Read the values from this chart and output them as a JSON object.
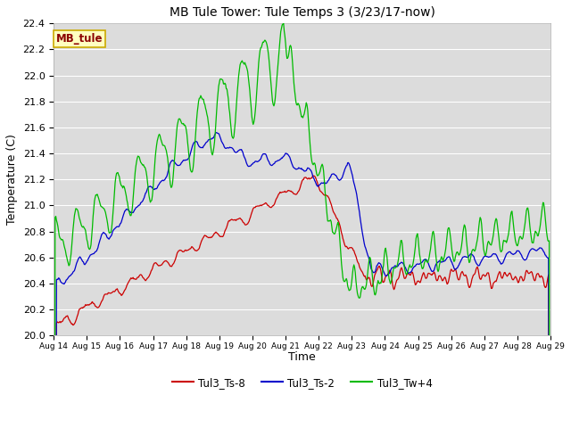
{
  "title": "MB Tule Tower: Tule Temps 3 (3/23/17-now)",
  "xlabel": "Time",
  "ylabel": "Temperature (C)",
  "ylim": [
    20.0,
    22.4
  ],
  "xlim": [
    0,
    360
  ],
  "bg_color": "#dcdcdc",
  "fig_color": "#ffffff",
  "x_tick_labels": [
    "Aug 14",
    "Aug 15",
    "Aug 16",
    "Aug 17",
    "Aug 18",
    "Aug 19",
    "Aug 20",
    "Aug 21",
    "Aug 22",
    "Aug 23",
    "Aug 24",
    "Aug 25",
    "Aug 26",
    "Aug 27",
    "Aug 28",
    "Aug 29"
  ],
  "x_tick_positions": [
    0,
    24,
    48,
    72,
    96,
    120,
    144,
    168,
    192,
    216,
    240,
    264,
    288,
    312,
    336,
    360
  ],
  "legend_label": "MB_tule",
  "series": [
    {
      "name": "Tul3_Ts-8",
      "color": "#cc0000"
    },
    {
      "name": "Tul3_Ts-2",
      "color": "#0000cc"
    },
    {
      "name": "Tul3_Tw+4",
      "color": "#00bb00"
    }
  ]
}
